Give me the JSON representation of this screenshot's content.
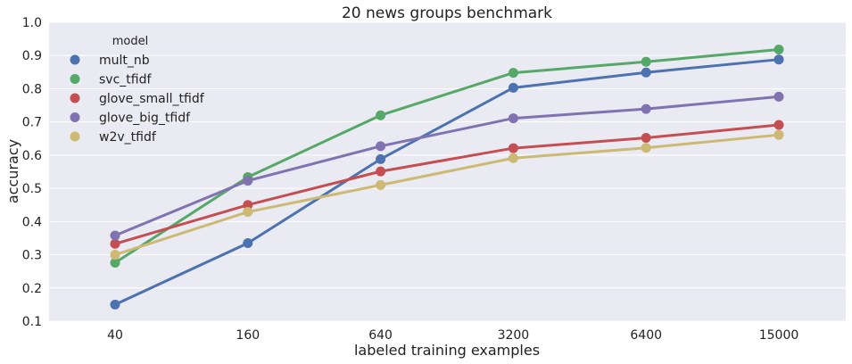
{
  "chart_data": {
    "type": "line",
    "title": "20 news groups benchmark",
    "xlabel": "labeled training examples",
    "ylabel": "accuracy",
    "categories": [
      "40",
      "160",
      "640",
      "3200",
      "6400",
      "15000"
    ],
    "ylim": [
      0.1,
      1.0
    ],
    "yticks": [
      "0.1",
      "0.2",
      "0.3",
      "0.4",
      "0.5",
      "0.6",
      "0.7",
      "0.8",
      "0.9",
      "1.0"
    ],
    "grid": true,
    "legend": {
      "title": "model",
      "placement": "top-left"
    },
    "series": [
      {
        "name": "mult_nb",
        "color": "#4C72B0",
        "values": [
          0.15,
          0.335,
          0.588,
          0.803,
          0.849,
          0.888
        ]
      },
      {
        "name": "svc_tfidf",
        "color": "#55A868",
        "values": [
          0.276,
          0.534,
          0.72,
          0.848,
          0.881,
          0.918
        ]
      },
      {
        "name": "glove_small_tfidf",
        "color": "#C44E52",
        "values": [
          0.333,
          0.45,
          0.551,
          0.621,
          0.652,
          0.691
        ]
      },
      {
        "name": "glove_big_tfidf",
        "color": "#8172B2",
        "values": [
          0.358,
          0.523,
          0.627,
          0.711,
          0.739,
          0.776
        ]
      },
      {
        "name": "w2v_tfidf",
        "color": "#CCB974",
        "values": [
          0.3,
          0.429,
          0.51,
          0.591,
          0.622,
          0.661
        ]
      }
    ]
  }
}
